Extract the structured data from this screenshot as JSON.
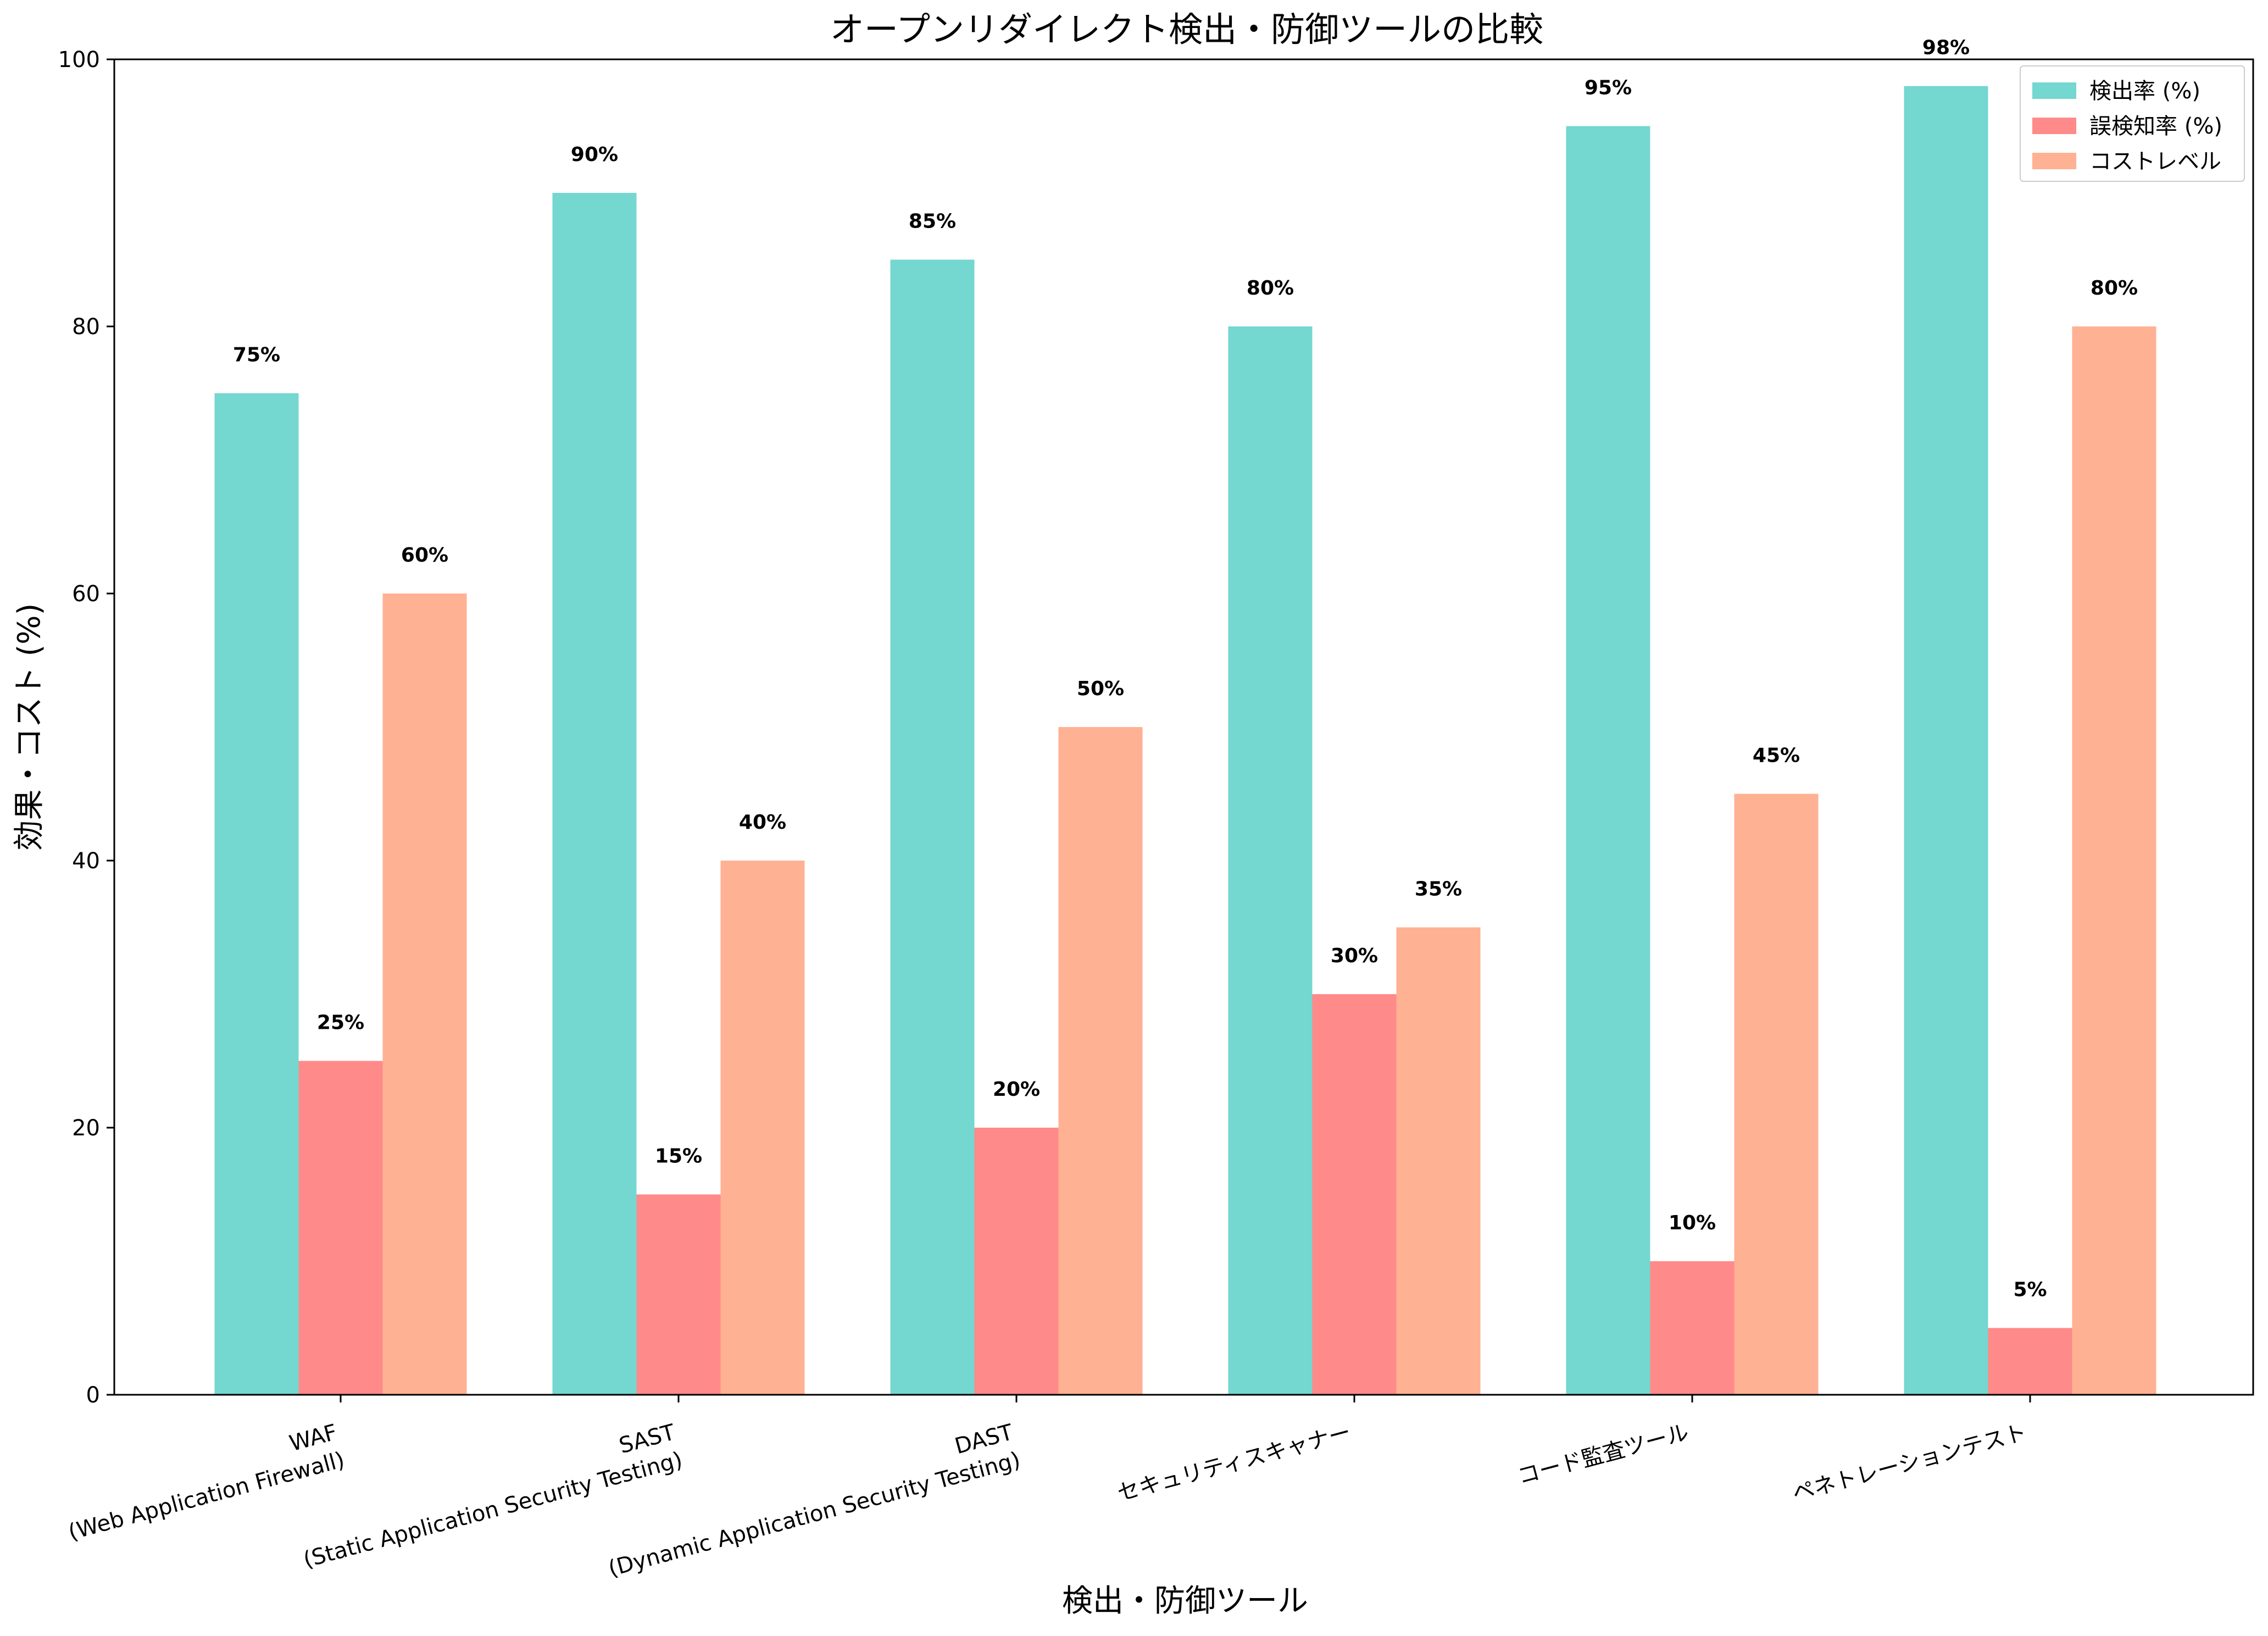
{
  "chart_data": {
    "type": "bar",
    "title": "オープンリダイレクト検出・防御ツールの比較",
    "xlabel": "検出・防御ツール",
    "ylabel": "効果・コスト (%)",
    "ylim": [
      0,
      100
    ],
    "yticks": [
      0,
      20,
      40,
      60,
      80,
      100
    ],
    "categories": [
      [
        "WAF",
        "(Web Application Firewall)"
      ],
      [
        "SAST",
        "(Static Application Security Testing)"
      ],
      [
        "DAST",
        "(Dynamic Application Security Testing)"
      ],
      [
        "セキュリティスキャナー"
      ],
      [
        "コード監査ツール"
      ],
      [
        "ペネトレーションテスト"
      ]
    ],
    "series": [
      {
        "name": "検出率 (%)",
        "color": "#74D7D0",
        "values": [
          75,
          90,
          85,
          80,
          95,
          98
        ]
      },
      {
        "name": "誤検知率 (%)",
        "color": "#FF8A8A",
        "values": [
          25,
          15,
          20,
          30,
          10,
          5
        ]
      },
      {
        "name": "コストレベル",
        "color": "#FFB193",
        "values": [
          60,
          40,
          50,
          35,
          45,
          80
        ]
      }
    ],
    "value_label_suffix": "%",
    "legend": "top-right",
    "grid": false
  }
}
